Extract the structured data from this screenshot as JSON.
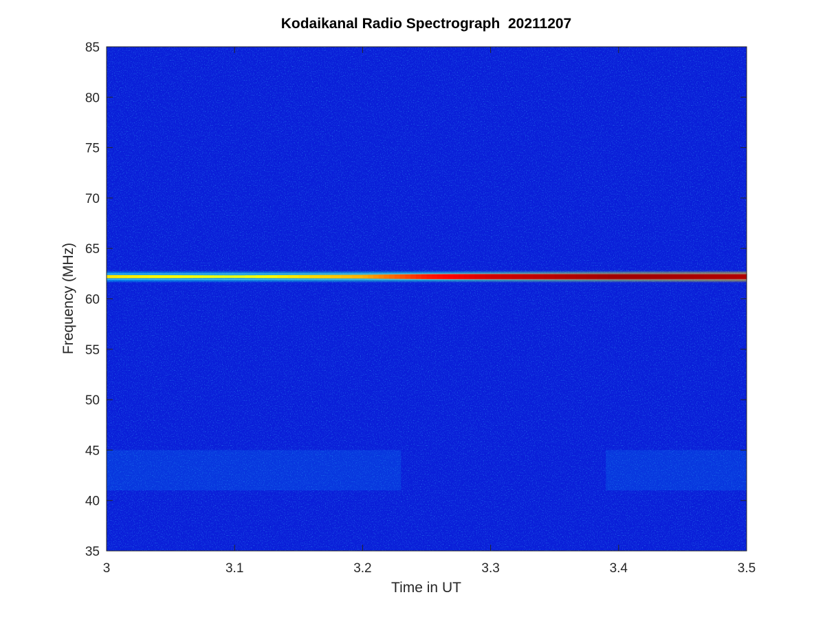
{
  "chart_data": {
    "type": "heatmap",
    "title": "Kodaikanal Radio Spectrograph  20211207",
    "xlabel": "Time in UT",
    "ylabel": "Frequency (MHz)",
    "xlim": [
      3,
      3.5
    ],
    "ylim": [
      35,
      85
    ],
    "x_ticks": [
      3,
      3.1,
      3.2,
      3.3,
      3.4,
      3.5
    ],
    "x_tick_labels": [
      "3",
      "3.1",
      "3.2",
      "3.3",
      "3.4",
      "3.5"
    ],
    "y_ticks": [
      35,
      40,
      45,
      50,
      55,
      60,
      65,
      70,
      75,
      80,
      85
    ],
    "y_tick_labels": [
      "35",
      "40",
      "45",
      "50",
      "55",
      "60",
      "65",
      "70",
      "75",
      "80",
      "85"
    ],
    "colormap": "jet",
    "background_color": "#0a1fd8",
    "grid": false,
    "legend": "none",
    "features": [
      {
        "kind": "narrowband-emission-line",
        "frequency_mhz": 62.2,
        "time_start_ut": 3.0,
        "time_end_ut": 3.5,
        "intensity_profile": [
          {
            "time_ut": 3.0,
            "level": 0.65
          },
          {
            "time_ut": 3.1,
            "level": 0.6
          },
          {
            "time_ut": 3.2,
            "level": 0.7
          },
          {
            "time_ut": 3.25,
            "level": 0.85
          },
          {
            "time_ut": 3.3,
            "level": 0.92
          },
          {
            "time_ut": 3.4,
            "level": 0.97
          },
          {
            "time_ut": 3.5,
            "level": 0.95
          }
        ]
      },
      {
        "kind": "weak-broadband-enhancement",
        "frequency_range_mhz": [
          41,
          45
        ],
        "time_ranges_ut": [
          [
            3.0,
            3.23
          ],
          [
            3.39,
            3.5
          ]
        ],
        "level": 0.3
      }
    ]
  }
}
